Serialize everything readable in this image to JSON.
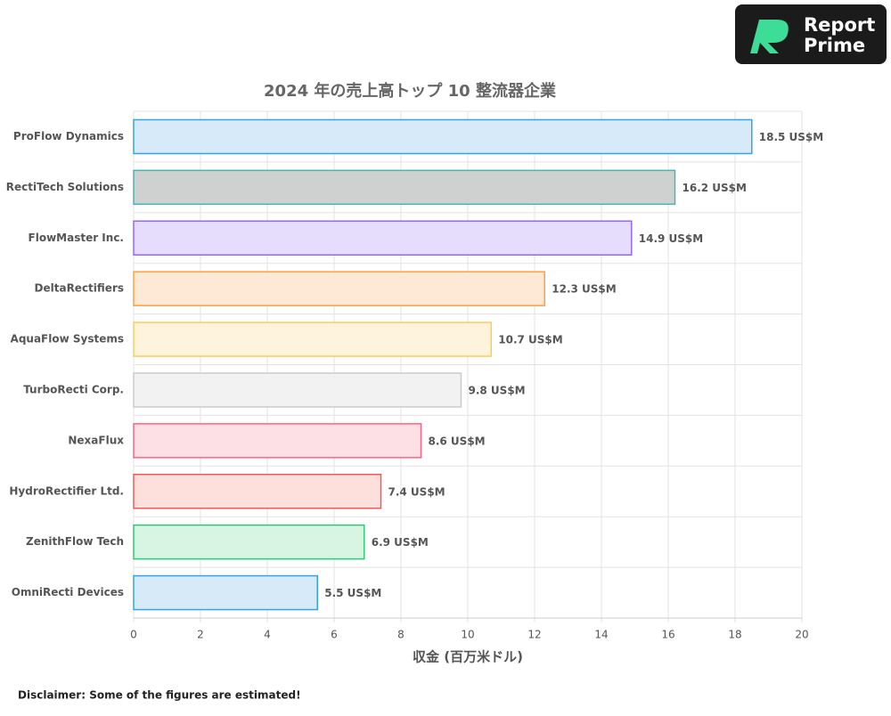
{
  "logo": {
    "line1": "Report",
    "line2": "Prime"
  },
  "disclaimer": "Disclaimer: Some of the figures are estimated!",
  "chart_data": {
    "type": "hbar",
    "title": "2024 年の売上高トップ 10 整流器企業",
    "x_label": "収金 (百万米ドル)",
    "categories": [
      "ProFlow Dynamics",
      "RectiTech Solutions",
      "FlowMaster Inc.",
      "DeltaRectifiers",
      "AquaFlow Systems",
      "TurboRecti Corp.",
      "NexaFlux",
      "HydroRectifier Ltd.",
      "ZenithFlow Tech",
      "OmniRecti Devices"
    ],
    "values": [
      18.5,
      16.2,
      14.9,
      12.3,
      10.7,
      9.8,
      8.6,
      7.4,
      6.9,
      5.5
    ],
    "value_labels": [
      "18.5 US$M",
      "16.2 US$M",
      "14.9 US$M",
      "12.3 US$M",
      "10.7 US$M",
      "9.8 US$M",
      "8.6 US$M",
      "7.4 US$M",
      "6.9 US$M",
      "5.5 US$M"
    ],
    "colors": [
      "#d6eaf8",
      "#cfd1d0",
      "#e6dcfc",
      "#fde9d6",
      "#fef3dc",
      "#f2f2f2",
      "#fde0e5",
      "#fde0dc",
      "#d8f5e3",
      "#d6eaf8"
    ],
    "border_colors": [
      "#36a2eb",
      "#4bb3b3",
      "#9966ff",
      "#ff9f40",
      "#ffcd56",
      "#c9cbcf",
      "#ff6384",
      "#f05a5a",
      "#2ecc71",
      "#36a2eb"
    ],
    "xlim": [
      0,
      20
    ],
    "xticks": [
      0,
      2,
      4,
      6,
      8,
      10,
      12,
      14,
      16,
      18,
      20
    ],
    "grid": true
  }
}
